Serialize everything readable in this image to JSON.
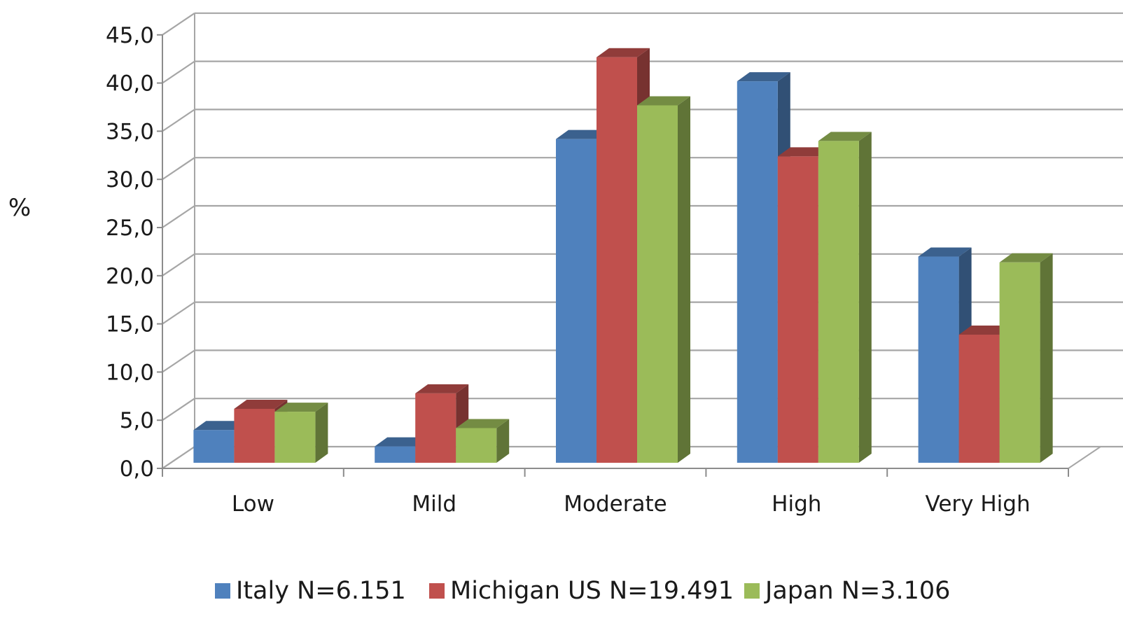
{
  "chart_data": {
    "type": "bar",
    "title": "",
    "xlabel": "",
    "ylabel": "%",
    "ylim": [
      0,
      45
    ],
    "yticks": [
      "0,0",
      "5,0",
      "10,0",
      "15,0",
      "20,0",
      "25,0",
      "30,0",
      "35,0",
      "40,0",
      "45,0"
    ],
    "categories": [
      "Low",
      "Mild",
      "Moderate",
      "High",
      "Very High"
    ],
    "series": [
      {
        "name": "Italy N=6.151",
        "color": "#4f81bd",
        "values": [
          3.4,
          1.7,
          33.6,
          39.6,
          21.4
        ]
      },
      {
        "name": "Michigan US N=19.491",
        "color": "#c0504d",
        "values": [
          5.6,
          7.2,
          42.1,
          31.8,
          13.3
        ]
      },
      {
        "name": "Japan N=3.106",
        "color": "#9bbb59",
        "values": [
          5.3,
          3.6,
          37.1,
          33.4,
          20.8
        ]
      }
    ],
    "grid": true,
    "legend": "bottom",
    "style": "3d-clustered-column"
  }
}
